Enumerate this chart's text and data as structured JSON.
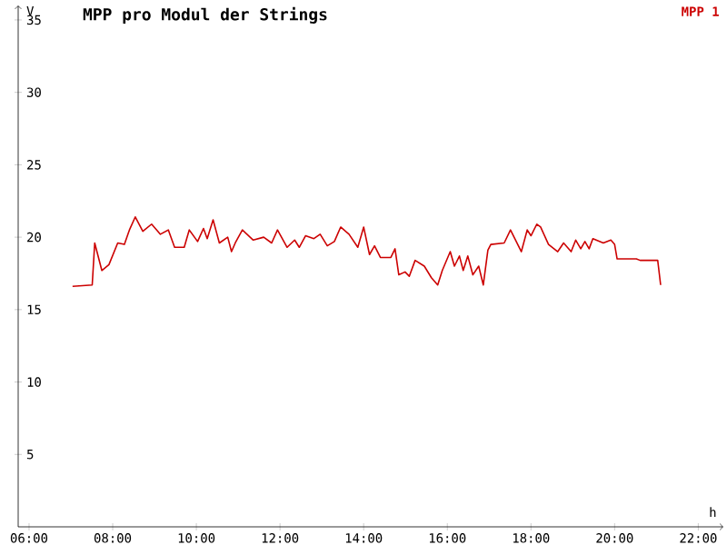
{
  "chart_data": {
    "type": "line",
    "title": "MPP pro Modul der Strings",
    "xlabel": "h",
    "ylabel": "V",
    "xlim": [
      5.74,
      22.6
    ],
    "ylim": [
      0,
      36
    ],
    "xticks": [
      {
        "value": 6,
        "label": "06:00"
      },
      {
        "value": 8,
        "label": "08:00"
      },
      {
        "value": 10,
        "label": "10:00"
      },
      {
        "value": 12,
        "label": "12:00"
      },
      {
        "value": 14,
        "label": "14:00"
      },
      {
        "value": 16,
        "label": "16:00"
      },
      {
        "value": 18,
        "label": "18:00"
      },
      {
        "value": 20,
        "label": "20:00"
      },
      {
        "value": 22,
        "label": "22:00"
      }
    ],
    "yticks": [
      5,
      10,
      15,
      20,
      25,
      30,
      35
    ],
    "grid": false,
    "legend": "top right",
    "marker": "none",
    "line_style": "solid",
    "series": [
      {
        "name": "MPP 1",
        "color": "#cc0000",
        "x": [
          7.04,
          7.51,
          7.57,
          7.74,
          7.91,
          8.12,
          8.28,
          8.4,
          8.54,
          8.72,
          8.93,
          9.14,
          9.33,
          9.48,
          9.71,
          9.83,
          10.03,
          10.17,
          10.26,
          10.4,
          10.55,
          10.75,
          10.84,
          10.93,
          11.1,
          11.36,
          11.61,
          11.8,
          11.94,
          12.17,
          12.35,
          12.46,
          12.61,
          12.81,
          12.96,
          13.13,
          13.3,
          13.45,
          13.65,
          13.86,
          14.0,
          14.14,
          14.26,
          14.4,
          14.65,
          14.75,
          14.84,
          14.99,
          15.09,
          15.23,
          15.45,
          15.62,
          15.77,
          15.88,
          16.07,
          16.17,
          16.29,
          16.38,
          16.49,
          16.61,
          16.75,
          16.86,
          16.97,
          17.04,
          17.36,
          17.51,
          17.77,
          17.91,
          18.0,
          18.14,
          18.23,
          18.42,
          18.64,
          18.78,
          18.96,
          19.07,
          19.19,
          19.29,
          19.39,
          19.48,
          19.73,
          19.91,
          20.0,
          20.06,
          20.52,
          20.61,
          21.03,
          21.1
        ],
        "values": [
          16.6,
          16.7,
          19.6,
          17.7,
          18.1,
          19.6,
          19.5,
          20.5,
          21.4,
          20.4,
          20.9,
          20.2,
          20.5,
          19.3,
          19.3,
          20.5,
          19.7,
          20.6,
          19.9,
          21.2,
          19.6,
          20.0,
          19.0,
          19.6,
          20.5,
          19.8,
          20.0,
          19.6,
          20.5,
          19.3,
          19.8,
          19.3,
          20.1,
          19.9,
          20.2,
          19.4,
          19.7,
          20.7,
          20.2,
          19.3,
          20.7,
          18.8,
          19.4,
          18.6,
          18.6,
          19.2,
          17.4,
          17.6,
          17.3,
          18.4,
          18.0,
          17.2,
          16.7,
          17.7,
          19.0,
          18.0,
          18.7,
          17.7,
          18.7,
          17.4,
          18.0,
          16.7,
          19.1,
          19.5,
          19.6,
          20.5,
          19.0,
          20.5,
          20.1,
          20.9,
          20.7,
          19.5,
          19.0,
          19.6,
          19.0,
          19.8,
          19.2,
          19.7,
          19.2,
          19.9,
          19.6,
          19.8,
          19.5,
          18.5,
          18.5,
          18.4,
          18.4,
          16.7
        ]
      }
    ]
  }
}
